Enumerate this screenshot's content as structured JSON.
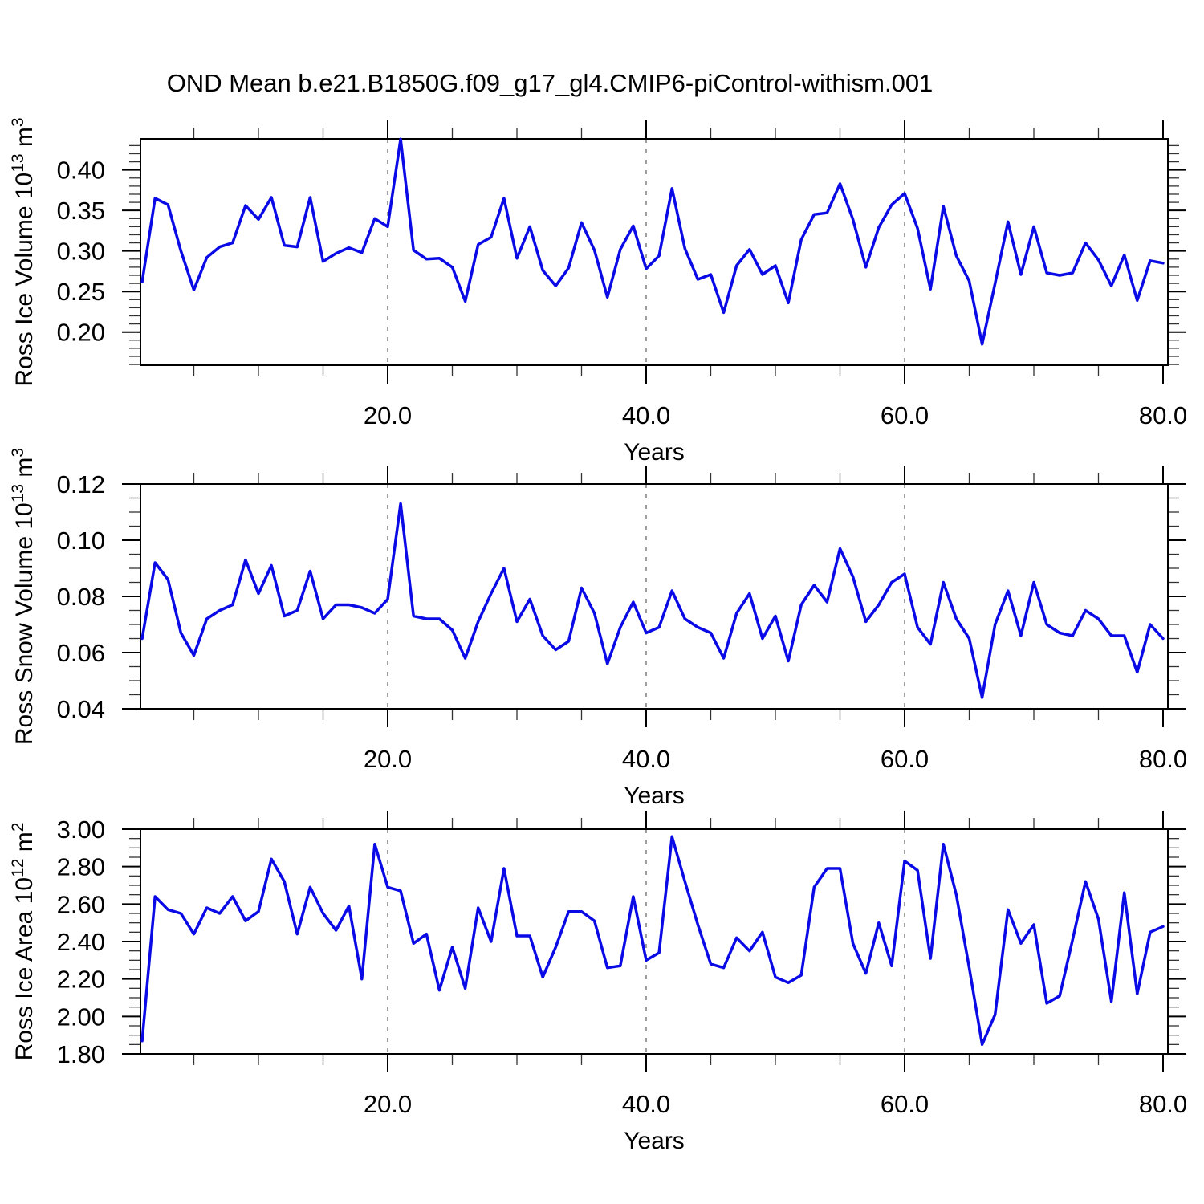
{
  "title": "OND Mean b.e21.B1850G.f09_g17_gl4.CMIP6-piControl-withism.001",
  "line_color": "#0a0ae6",
  "grid_color": "#7f7f7f",
  "chart_data": [
    {
      "type": "line",
      "title": "OND Mean b.e21.B1850G.f09_g17_gl4.CMIP6-piControl-withism.001",
      "xlabel": "Years",
      "ylabel": "Ross Ice Volume 10^13 m^3",
      "ylabel_parts": [
        {
          "t": "Ross Ice Volume 10"
        },
        {
          "t": "13",
          "sup": true
        },
        {
          "t": " m"
        },
        {
          "t": "3",
          "sup": true
        }
      ],
      "legend": "none",
      "grid": "dashed vertical at x=20,40,60",
      "x_years_start": 1,
      "x_years_step": 1,
      "xlim": [
        0.87,
        80.37
      ],
      "ylim": [
        0.1591,
        0.4383
      ],
      "xticks": [
        20,
        40,
        60,
        80
      ],
      "xtick_labels": [
        "20.0",
        "40.0",
        "60.0",
        "80.0"
      ],
      "minor_x_step": 5,
      "yticks": [
        0.2,
        0.25,
        0.3,
        0.35,
        0.4
      ],
      "ytick_labels": [
        "0.20",
        "0.25",
        "0.30",
        "0.35",
        "0.40"
      ],
      "minor_y_step": 0.01,
      "grid_x": [
        20,
        40,
        60
      ],
      "values": [
        0.262,
        0.365,
        0.357,
        0.3,
        0.252,
        0.292,
        0.305,
        0.31,
        0.356,
        0.339,
        0.366,
        0.307,
        0.305,
        0.366,
        0.287,
        0.297,
        0.304,
        0.298,
        0.34,
        0.33,
        0.438,
        0.301,
        0.29,
        0.291,
        0.28,
        0.238,
        0.308,
        0.317,
        0.365,
        0.291,
        0.33,
        0.276,
        0.257,
        0.279,
        0.335,
        0.301,
        0.243,
        0.302,
        0.331,
        0.278,
        0.294,
        0.377,
        0.303,
        0.265,
        0.271,
        0.224,
        0.282,
        0.302,
        0.271,
        0.282,
        0.236,
        0.314,
        0.345,
        0.347,
        0.383,
        0.339,
        0.28,
        0.329,
        0.357,
        0.371,
        0.328,
        0.253,
        0.355,
        0.294,
        0.263,
        0.185,
        0.26,
        0.336,
        0.271,
        0.33,
        0.273,
        0.27,
        0.273,
        0.31,
        0.289,
        0.257,
        0.295,
        0.239,
        0.288,
        0.285
      ]
    },
    {
      "type": "line",
      "title": "OND Mean b.e21.B1850G.f09_g17_gl4.CMIP6-piControl-withism.001",
      "xlabel": "Years",
      "ylabel": "Ross Snow Volume 10^13 m^3",
      "ylabel_parts": [
        {
          "t": "Ross Snow Volume 10"
        },
        {
          "t": "13",
          "sup": true
        },
        {
          "t": " m"
        },
        {
          "t": "3",
          "sup": true
        }
      ],
      "legend": "none",
      "grid": "dashed vertical at x=20,40,60",
      "x_years_start": 1,
      "x_years_step": 1,
      "xlim": [
        0.87,
        80.37
      ],
      "ylim": [
        0.04,
        0.12
      ],
      "xticks": [
        20,
        40,
        60,
        80
      ],
      "xtick_labels": [
        "20.0",
        "40.0",
        "60.0",
        "80.0"
      ],
      "minor_x_step": 5,
      "yticks": [
        0.04,
        0.06,
        0.08,
        0.1,
        0.12
      ],
      "ytick_labels": [
        "0.04",
        "0.06",
        "0.08",
        "0.10",
        "0.12"
      ],
      "minor_y_step": 0.005,
      "grid_x": [
        20,
        40,
        60
      ],
      "values": [
        0.065,
        0.092,
        0.086,
        0.067,
        0.059,
        0.072,
        0.075,
        0.077,
        0.093,
        0.081,
        0.091,
        0.073,
        0.075,
        0.089,
        0.072,
        0.077,
        0.077,
        0.076,
        0.074,
        0.079,
        0.113,
        0.073,
        0.072,
        0.072,
        0.068,
        0.058,
        0.071,
        0.081,
        0.09,
        0.071,
        0.079,
        0.066,
        0.061,
        0.064,
        0.083,
        0.074,
        0.056,
        0.069,
        0.078,
        0.067,
        0.069,
        0.082,
        0.072,
        0.069,
        0.067,
        0.058,
        0.074,
        0.081,
        0.065,
        0.073,
        0.057,
        0.077,
        0.084,
        0.078,
        0.097,
        0.087,
        0.071,
        0.077,
        0.085,
        0.088,
        0.069,
        0.063,
        0.085,
        0.072,
        0.065,
        0.044,
        0.07,
        0.082,
        0.066,
        0.085,
        0.07,
        0.067,
        0.066,
        0.075,
        0.072,
        0.066,
        0.066,
        0.053,
        0.07,
        0.065
      ]
    },
    {
      "type": "line",
      "title": "OND Mean b.e21.B1850G.f09_g17_gl4.CMIP6-piControl-withism.001",
      "xlabel": "Years",
      "ylabel": "Ross Ice Area 10^12 m^2",
      "ylabel_parts": [
        {
          "t": "Ross Ice Area 10"
        },
        {
          "t": "12",
          "sup": true
        },
        {
          "t": " m"
        },
        {
          "t": "2",
          "sup": true
        }
      ],
      "legend": "none",
      "grid": "dashed vertical at x=20,40,60",
      "x_years_start": 1,
      "x_years_step": 1,
      "xlim": [
        0.87,
        80.37
      ],
      "ylim": [
        1.8,
        3.0
      ],
      "xticks": [
        20,
        40,
        60,
        80
      ],
      "xtick_labels": [
        "20.0",
        "40.0",
        "60.0",
        "80.0"
      ],
      "minor_x_step": 5,
      "yticks": [
        1.8,
        2.0,
        2.2,
        2.4,
        2.6,
        2.8,
        3.0
      ],
      "ytick_labels": [
        "1.80",
        "2.00",
        "2.20",
        "2.40",
        "2.60",
        "2.80",
        "3.00"
      ],
      "minor_y_step": 0.05,
      "grid_x": [
        20,
        40,
        60
      ],
      "values": [
        1.87,
        2.64,
        2.57,
        2.55,
        2.44,
        2.58,
        2.55,
        2.64,
        2.51,
        2.56,
        2.84,
        2.72,
        2.44,
        2.69,
        2.55,
        2.46,
        2.59,
        2.2,
        2.92,
        2.69,
        2.67,
        2.39,
        2.44,
        2.14,
        2.37,
        2.15,
        2.58,
        2.4,
        2.79,
        2.43,
        2.43,
        2.21,
        2.37,
        2.56,
        2.56,
        2.51,
        2.26,
        2.27,
        2.64,
        2.3,
        2.34,
        2.96,
        2.72,
        2.49,
        2.28,
        2.26,
        2.42,
        2.35,
        2.45,
        2.21,
        2.18,
        2.22,
        2.69,
        2.79,
        2.79,
        2.39,
        2.23,
        2.5,
        2.27,
        2.83,
        2.78,
        2.31,
        2.92,
        2.65,
        2.26,
        1.85,
        2.01,
        2.57,
        2.39,
        2.49,
        2.07,
        2.11,
        2.41,
        2.72,
        2.52,
        2.08,
        2.66,
        2.12,
        2.45,
        2.48
      ]
    }
  ]
}
